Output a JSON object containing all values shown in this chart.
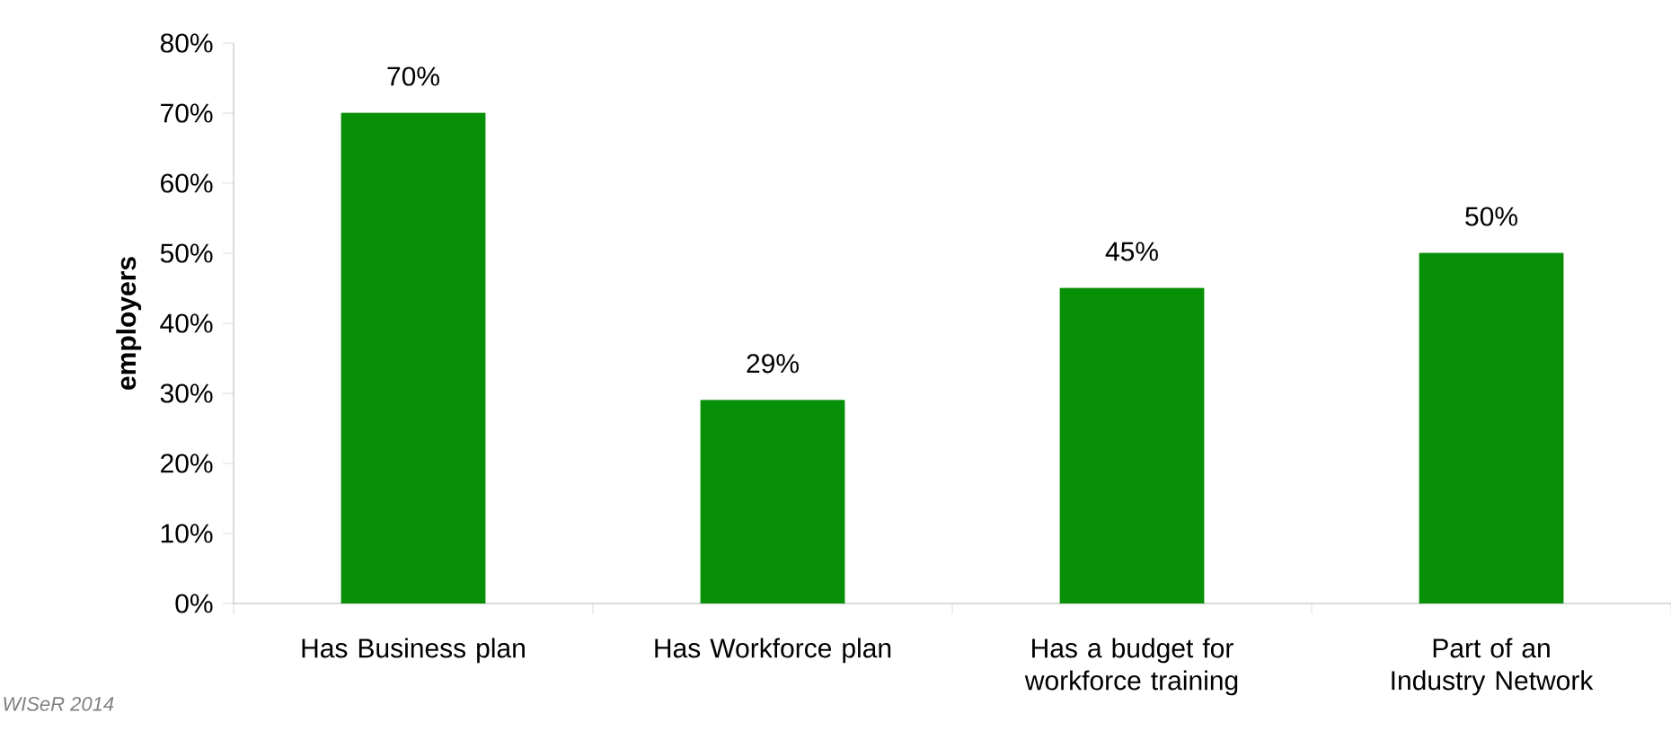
{
  "chart_data": {
    "type": "bar",
    "ylabel": "employers",
    "categories": [
      "Has Business plan",
      "Has Workforce plan",
      "Has a budget for workforce training",
      "Part of an Industry Network"
    ],
    "values": [
      70,
      29,
      45,
      50
    ],
    "value_labels": [
      "70%",
      "29%",
      "45%",
      "50%"
    ],
    "color": "#078f07",
    "ylim": [
      0,
      80
    ],
    "yticks": [
      {
        "value": 0,
        "label": "0%"
      },
      {
        "value": 10,
        "label": "10%"
      },
      {
        "value": 20,
        "label": "20%"
      },
      {
        "value": 30,
        "label": "30%"
      },
      {
        "value": 40,
        "label": "40%"
      },
      {
        "value": 50,
        "label": "50%"
      },
      {
        "value": 60,
        "label": "60%"
      },
      {
        "value": 70,
        "label": "70%"
      },
      {
        "value": 80,
        "label": "80%"
      }
    ],
    "grid": false,
    "annotations": [
      "WISeR 2014"
    ]
  }
}
